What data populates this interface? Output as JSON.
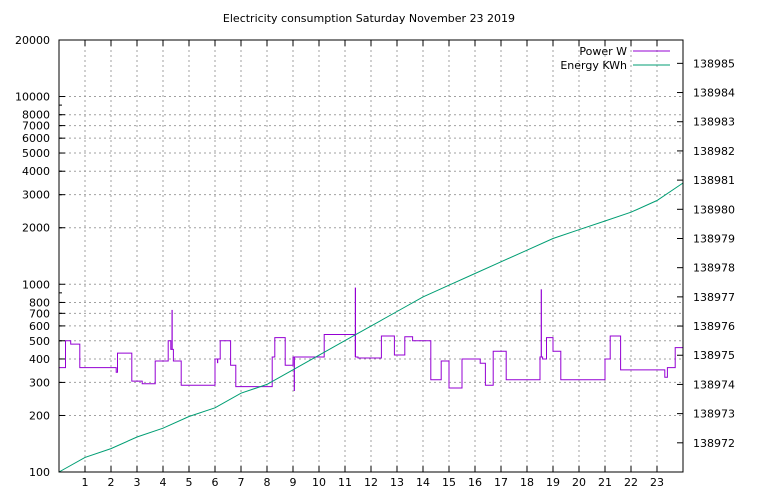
{
  "chart_data": {
    "type": "line",
    "title": "Electricity consumption Saturday November 23 2019",
    "xlabel": "",
    "ylabel": "",
    "xlim": [
      0,
      24
    ],
    "ylim": [
      100,
      20000
    ],
    "ylog": true,
    "y2lim": [
      138971.0,
      138985.8
    ],
    "grid": true,
    "legend_position": "top-right",
    "x_ticks": [
      1,
      2,
      3,
      4,
      5,
      6,
      7,
      8,
      9,
      10,
      11,
      12,
      13,
      14,
      15,
      16,
      17,
      18,
      19,
      20,
      21,
      22,
      23
    ],
    "y_ticks": [
      {
        "value": 100,
        "label": "100"
      },
      {
        "value": 200,
        "label": "200"
      },
      {
        "value": 300,
        "label": "300"
      },
      {
        "value": 400,
        "label": "400"
      },
      {
        "value": 500,
        "label": "500"
      },
      {
        "value": 600,
        "label": "600"
      },
      {
        "value": 700,
        "label": "700"
      },
      {
        "value": 800,
        "label": "800"
      },
      {
        "value": 1000,
        "label": "1000"
      },
      {
        "value": 2000,
        "label": "2000"
      },
      {
        "value": 3000,
        "label": "3000"
      },
      {
        "value": 4000,
        "label": "4000"
      },
      {
        "value": 5000,
        "label": "5000"
      },
      {
        "value": 6000,
        "label": "6000"
      },
      {
        "value": 7000,
        "label": "7000"
      },
      {
        "value": 8000,
        "label": "8000"
      },
      {
        "value": 10000,
        "label": "10000"
      },
      {
        "value": 20000,
        "label": "20000"
      }
    ],
    "y2_ticks": [
      138972,
      138973,
      138974,
      138975,
      138976,
      138977,
      138978,
      138979,
      138980,
      138981,
      138982,
      138983,
      138984,
      138985
    ],
    "series": [
      {
        "name": "Power W",
        "axis": "y",
        "color": "#9400d3",
        "step": true,
        "x": [
          0,
          0.25,
          0.45,
          0.8,
          2.2,
          2.25,
          2.8,
          3.2,
          3.7,
          4.2,
          4.3,
          4.4,
          4.7,
          6.0,
          6.2,
          6.6,
          6.8,
          8.2,
          8.3,
          8.7,
          9.0,
          10.2,
          11.4,
          11.5,
          12.4,
          12.9,
          13.3,
          13.6,
          14.3,
          14.7,
          15.0,
          15.5,
          16.2,
          16.4,
          16.7,
          17.2,
          18.5,
          18.6,
          18.75,
          19.0,
          19.3,
          21.0,
          21.2,
          21.6,
          23.3,
          23.4,
          23.7,
          24.0
        ],
        "y": [
          360,
          500,
          480,
          360,
          340,
          430,
          305,
          295,
          390,
          500,
          450,
          390,
          290,
          400,
          500,
          370,
          285,
          410,
          520,
          370,
          410,
          540,
          410,
          405,
          530,
          420,
          525,
          500,
          310,
          390,
          280,
          400,
          380,
          290,
          440,
          310,
          410,
          400,
          520,
          440,
          310,
          400,
          530,
          350,
          320,
          360,
          460,
          560
        ]
      },
      {
        "name": "Energy KWh",
        "axis": "y2",
        "color": "#009e73",
        "step": false,
        "x": [
          0,
          1,
          2,
          3,
          4,
          5,
          6,
          7,
          8,
          9,
          10,
          11,
          12,
          13,
          14,
          15,
          16,
          17,
          18,
          19,
          20,
          21,
          22,
          23,
          24
        ],
        "y": [
          138971.0,
          138971.5,
          138971.8,
          138972.2,
          138972.5,
          138972.9,
          138973.2,
          138973.7,
          138974.0,
          138974.5,
          138975.0,
          138975.5,
          138976.0,
          138976.5,
          138977.0,
          138977.4,
          138977.8,
          138978.2,
          138978.6,
          138979.0,
          138979.3,
          138979.6,
          138979.9,
          138980.3,
          138980.9
        ]
      }
    ],
    "spikes": [
      {
        "x": 4.35,
        "y": 730
      },
      {
        "x": 6.1,
        "y": 380
      },
      {
        "x": 9.05,
        "y": 270
      },
      {
        "x": 11.4,
        "y": 960
      },
      {
        "x": 18.55,
        "y": 940
      }
    ]
  }
}
